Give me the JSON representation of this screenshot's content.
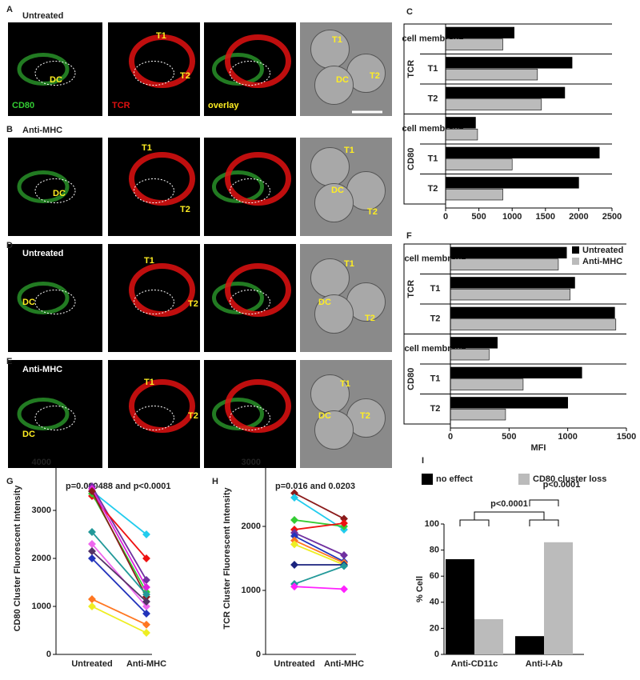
{
  "image_panels": [
    {
      "letter": "A",
      "condition": "Untreated",
      "channels": [
        "CD80",
        "TCR",
        "overlay"
      ],
      "cells": [
        "DC",
        "T1",
        "T2",
        "T1",
        "DC",
        "T2"
      ]
    },
    {
      "letter": "B",
      "condition": "Anti-MHC",
      "cells": [
        "DC",
        "T1",
        "T2",
        "T1",
        "DC",
        "T2"
      ]
    },
    {
      "letter": "D",
      "condition": "Untreated",
      "cells": [
        "DC",
        "T1",
        "T2",
        "T1",
        "DC",
        "T2"
      ]
    },
    {
      "letter": "E",
      "condition": "Anti-MHC",
      "cells": [
        "DC",
        "T1",
        "T2",
        "T1",
        "DC",
        "T2"
      ]
    }
  ],
  "chart_data": [
    {
      "type": "hbar",
      "panel": "C",
      "categories": [
        "cell membrane",
        "T1",
        "T2",
        "cell membrane",
        "T1",
        "T2"
      ],
      "groups": [
        "TCR",
        "CD80"
      ],
      "series": [
        {
          "color": "#000000",
          "values": [
            1030,
            1900,
            1790,
            450,
            2310,
            2000
          ]
        },
        {
          "color": "#bbbbbb",
          "values": [
            860,
            1380,
            1440,
            480,
            1000,
            860
          ]
        }
      ],
      "xlim": [
        0,
        2500
      ],
      "xticks": [
        0,
        500,
        1000,
        1500,
        2000,
        2500
      ]
    },
    {
      "type": "hbar",
      "panel": "F",
      "categories": [
        "cell membrane",
        "T1",
        "T2",
        "cell membrane",
        "T1",
        "T2"
      ],
      "groups": [
        "TCR",
        "CD80"
      ],
      "series": [
        {
          "name": "Untreated",
          "color": "#000000",
          "values": [
            990,
            1060,
            1400,
            400,
            1120,
            1000
          ]
        },
        {
          "name": "Anti-MHC",
          "color": "#bbbbbb",
          "values": [
            920,
            1020,
            1410,
            330,
            620,
            470
          ]
        }
      ],
      "xlim": [
        0,
        1500
      ],
      "xticks": [
        0,
        500,
        1000,
        1500
      ],
      "xlabel": "MFI"
    },
    {
      "type": "pairs",
      "panel": "G",
      "annotation": "p=0.000488 and p<0.0001",
      "ylabel": "CD80 Cluster Fluorescent Intensity",
      "categories": [
        "Untreated",
        "Anti-MHC"
      ],
      "ylim": [
        0,
        4000
      ],
      "yticks": [
        0,
        1000,
        2000,
        3000,
        4000
      ],
      "series": [
        {
          "color": "#22ccee",
          "values": [
            3400,
            2500
          ]
        },
        {
          "color": "#7030a0",
          "values": [
            3500,
            1550
          ]
        },
        {
          "color": "#ee1111",
          "values": [
            3300,
            2000
          ]
        },
        {
          "color": "#33cc33",
          "values": [
            3350,
            1300
          ]
        },
        {
          "color": "#dd22dd",
          "values": [
            3450,
            1400
          ]
        },
        {
          "color": "#8b1a1a",
          "values": [
            3400,
            1200
          ]
        },
        {
          "color": "#229999",
          "values": [
            2550,
            1250
          ]
        },
        {
          "color": "#ee66ee",
          "values": [
            2300,
            1000
          ]
        },
        {
          "color": "#553366",
          "values": [
            2150,
            1100
          ]
        },
        {
          "color": "#2233bb",
          "values": [
            2000,
            850
          ]
        },
        {
          "color": "#ff7722",
          "values": [
            1150,
            620
          ]
        },
        {
          "color": "#eeee22",
          "values": [
            1000,
            450
          ]
        }
      ]
    },
    {
      "type": "pairs",
      "panel": "H",
      "annotation": "p=0.016 and 0.0203",
      "ylabel": "TCR Cluster Fluorescent Intensity",
      "categories": [
        "Untreated",
        "Anti-MHC"
      ],
      "ylim": [
        0,
        3000
      ],
      "yticks": [
        0,
        1000,
        2000,
        3000
      ],
      "series": [
        {
          "color": "#8b1a1a",
          "values": [
            2520,
            2120
          ]
        },
        {
          "color": "#22ccee",
          "values": [
            2450,
            1950
          ]
        },
        {
          "color": "#33cc33",
          "values": [
            2100,
            2000
          ]
        },
        {
          "color": "#ee1111",
          "values": [
            1950,
            2050
          ]
        },
        {
          "color": "#7030a0",
          "values": [
            1900,
            1550
          ]
        },
        {
          "color": "#2233bb",
          "values": [
            1850,
            1450
          ]
        },
        {
          "color": "#ff7722",
          "values": [
            1780,
            1430
          ]
        },
        {
          "color": "#eeee22",
          "values": [
            1720,
            1400
          ]
        },
        {
          "color": "#1a237e",
          "values": [
            1400,
            1400
          ]
        },
        {
          "color": "#229999",
          "values": [
            1100,
            1380
          ]
        },
        {
          "color": "#ff22ff",
          "values": [
            1060,
            1020
          ]
        }
      ]
    },
    {
      "type": "bar",
      "panel": "I",
      "categories": [
        "Anti-CD11c",
        "Anti-I-Ab"
      ],
      "ylabel": "% Cell",
      "ylim": [
        0,
        100
      ],
      "yticks": [
        0,
        20,
        40,
        60,
        80,
        100
      ],
      "annotations": [
        "p<0.0001",
        "p<0.0001"
      ],
      "series": [
        {
          "name": "no effect",
          "color": "#000000",
          "values": [
            73,
            14
          ]
        },
        {
          "name": "CD80 cluster loss",
          "color": "#bbbbbb",
          "values": [
            27,
            86
          ]
        }
      ]
    }
  ]
}
